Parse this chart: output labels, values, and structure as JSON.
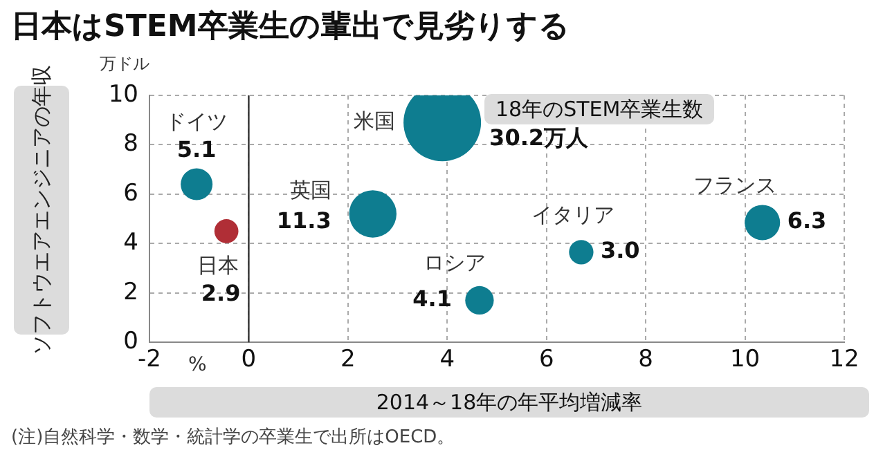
{
  "chart_data": {
    "type": "bubble",
    "title": "日本はSTEM卒業生の輩出で見劣りする",
    "ylabel": "ソフトウエアエンジニアの年収",
    "xlabel": "2014～18年の年平均増減率",
    "xlim": [
      -2,
      12
    ],
    "xticks": [
      -2,
      0,
      2,
      4,
      6,
      8,
      10,
      12
    ],
    "ylim": [
      0,
      10
    ],
    "yticks": [
      0,
      2,
      4,
      6,
      8,
      10
    ],
    "grid": true,
    "legend": false,
    "data_labels": true,
    "ref_lines": [
      {
        "axis": "x",
        "value": 0,
        "color": "#333333",
        "line_style": "solid"
      }
    ],
    "series": [
      {
        "name": "ドイツ",
        "color": "#0e7d90",
        "x": [
          -1.05
        ],
        "values": [
          6.4
        ],
        "sizes": [
          5.1
        ],
        "value_labels": [
          "5.1"
        ]
      },
      {
        "name": "日本",
        "color": "#b02e36",
        "x": [
          -0.45
        ],
        "values": [
          4.5
        ],
        "sizes": [
          2.9
        ],
        "value_labels": [
          "2.9"
        ]
      },
      {
        "name": "英国",
        "color": "#0e7d90",
        "x": [
          2.5
        ],
        "values": [
          5.2
        ],
        "sizes": [
          11.3
        ],
        "value_labels": [
          "11.3"
        ]
      },
      {
        "name": "米国",
        "color": "#0e7d90",
        "x": [
          3.9
        ],
        "values": [
          8.9
        ],
        "sizes": [
          30.2
        ],
        "value_labels": [
          "30.2万人"
        ]
      },
      {
        "name": "ロシア",
        "color": "#0e7d90",
        "x": [
          4.65
        ],
        "values": [
          1.7
        ],
        "sizes": [
          4.1
        ],
        "value_labels": [
          "4.1"
        ]
      },
      {
        "name": "イタリア",
        "color": "#0e7d90",
        "x": [
          6.7
        ],
        "values": [
          3.65
        ],
        "sizes": [
          3.0
        ],
        "value_labels": [
          "3.0"
        ]
      },
      {
        "name": "フランス",
        "color": "#0e7d90",
        "x": [
          10.35
        ],
        "values": [
          4.85
        ],
        "sizes": [
          6.3
        ],
        "value_labels": [
          "6.3"
        ]
      }
    ],
    "annotations": [
      "万ドル",
      "%",
      "18年のSTEM卒業生数",
      "(注)自然科学・数学・統計学の卒業生で出所はOECD。"
    ]
  }
}
